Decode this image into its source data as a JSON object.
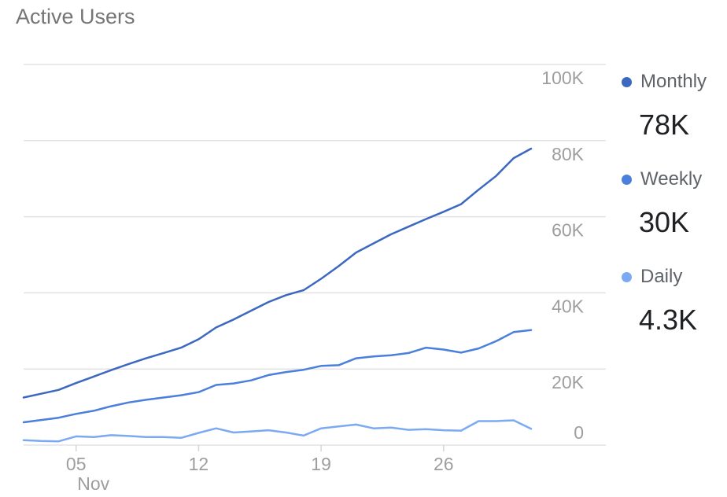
{
  "chart_data": {
    "type": "line",
    "title": "Active Users",
    "x_tick_labels": [
      {
        "day": 5,
        "label": "05",
        "sublabel": "Nov"
      },
      {
        "day": 12,
        "label": "12",
        "sublabel": ""
      },
      {
        "day": 19,
        "label": "19",
        "sublabel": ""
      },
      {
        "day": 26,
        "label": "26",
        "sublabel": ""
      }
    ],
    "y_ticks": [
      {
        "value": 0,
        "label": "0"
      },
      {
        "value": 20000,
        "label": "20K"
      },
      {
        "value": 40000,
        "label": "40K"
      },
      {
        "value": 60000,
        "label": "60K"
      },
      {
        "value": 80000,
        "label": "80K"
      },
      {
        "value": 100000,
        "label": "100K"
      }
    ],
    "ylim": [
      0,
      100000
    ],
    "xlim": [
      2,
      31
    ],
    "grid": true,
    "legend_position": "right",
    "x": [
      2,
      3,
      4,
      5,
      6,
      7,
      8,
      9,
      10,
      11,
      12,
      13,
      14,
      15,
      16,
      17,
      18,
      19,
      20,
      21,
      22,
      23,
      24,
      25,
      26,
      27,
      28,
      29,
      30,
      31
    ],
    "series": [
      {
        "name": "Monthly",
        "color": "#3c68c0",
        "latest_label": "78K",
        "values": [
          12500,
          13500,
          14500,
          16300,
          18000,
          19700,
          21300,
          22800,
          24200,
          25600,
          27800,
          30900,
          33000,
          35300,
          37600,
          39400,
          40700,
          43700,
          47000,
          50600,
          53000,
          55400,
          57400,
          59400,
          61300,
          63300,
          67100,
          70700,
          75400,
          77900
        ]
      },
      {
        "name": "Weekly",
        "color": "#4a7fdb",
        "latest_label": "30K",
        "values": [
          6000,
          6600,
          7200,
          8200,
          9000,
          10200,
          11200,
          11900,
          12500,
          13100,
          13900,
          15800,
          16200,
          17000,
          18400,
          19200,
          19800,
          20800,
          21000,
          22800,
          23300,
          23600,
          24200,
          25600,
          25100,
          24300,
          25400,
          27300,
          29700,
          30200
        ]
      },
      {
        "name": "Daily",
        "color": "#7baaf2",
        "latest_label": "4.3K",
        "values": [
          1300,
          1100,
          1000,
          2300,
          2100,
          2600,
          2400,
          2100,
          2100,
          1900,
          3200,
          4400,
          3300,
          3600,
          3900,
          3300,
          2500,
          4400,
          4900,
          5400,
          4400,
          4600,
          4000,
          4200,
          3900,
          3800,
          6300,
          6300,
          6500,
          4300
        ]
      }
    ]
  }
}
